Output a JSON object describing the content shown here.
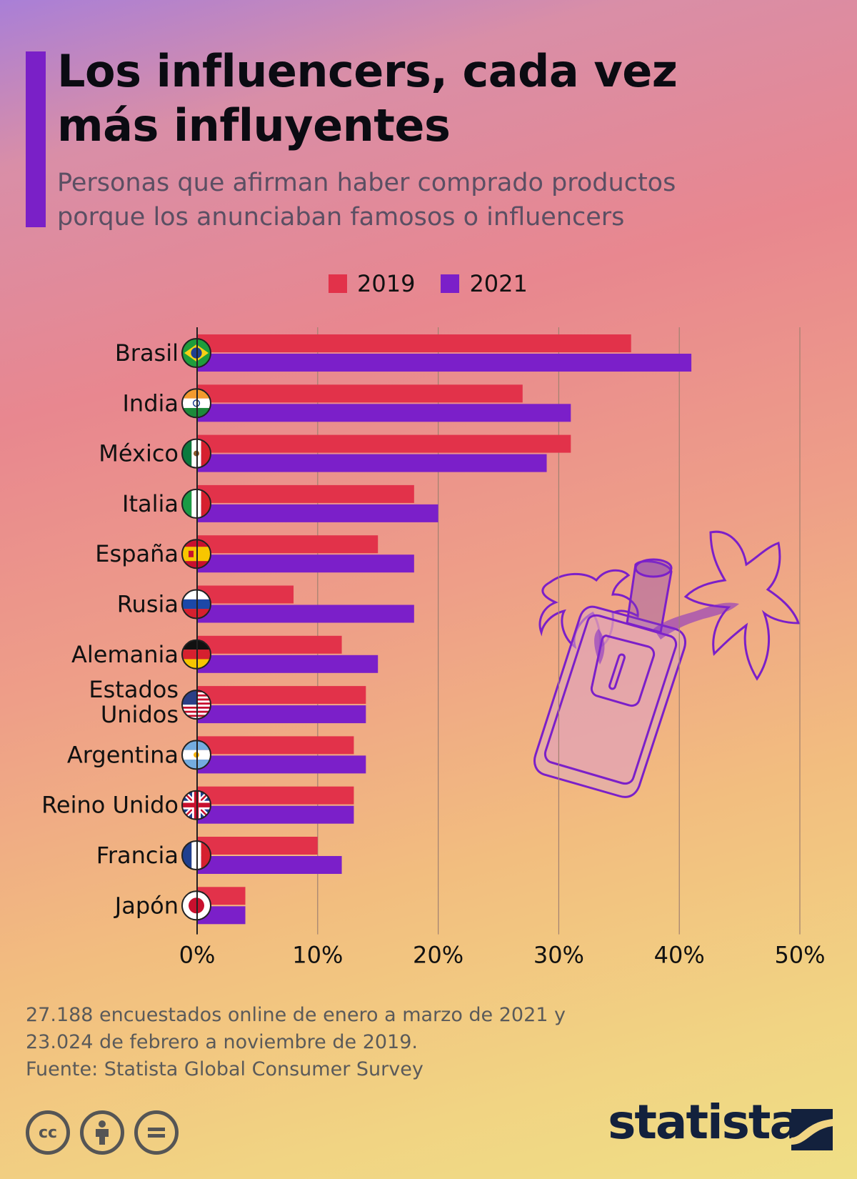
{
  "title": "Los influencers, cada vez más influyentes",
  "subtitle": "Personas que afirman haber comprado productos porque los anunciaban famosos o influencers",
  "legend": [
    {
      "label": "2019",
      "color": "#e2324a"
    },
    {
      "label": "2021",
      "color": "#7b1fc9"
    }
  ],
  "notes": "27.188 encuestados online de enero a marzo de 2021 y 23.024 de febrero a noviembre de 2019.",
  "source": "Fuente: Statista Global Consumer Survey",
  "license_icons": [
    "cc-icon",
    "attribution-icon",
    "no-derivatives-icon"
  ],
  "brand": "statista",
  "chart_data": {
    "type": "bar",
    "orientation": "horizontal",
    "categories": [
      "Brasil",
      "India",
      "México",
      "Italia",
      "España",
      "Rusia",
      "Alemania",
      "Estados Unidos",
      "Argentina",
      "Reino Unido",
      "Francia",
      "Japón"
    ],
    "category_flags": [
      "brazil-flag",
      "india-flag",
      "mexico-flag",
      "italy-flag",
      "spain-flag",
      "russia-flag",
      "germany-flag",
      "usa-flag",
      "argentina-flag",
      "uk-flag",
      "france-flag",
      "japan-flag"
    ],
    "series": [
      {
        "name": "2019",
        "color": "#e2324a",
        "values": [
          36,
          27,
          31,
          18,
          15,
          8,
          12,
          14,
          13,
          13,
          10,
          4
        ]
      },
      {
        "name": "2021",
        "color": "#7b1fc9",
        "values": [
          41,
          31,
          29,
          20,
          18,
          18,
          15,
          14,
          14,
          13,
          12,
          4
        ]
      }
    ],
    "xlim": [
      0,
      50
    ],
    "xticks": [
      0,
      10,
      20,
      30,
      40,
      50
    ],
    "xtick_labels": [
      "0%",
      "10%",
      "20%",
      "30%",
      "40%",
      "50%"
    ],
    "grid": true,
    "legend_position": "top"
  }
}
